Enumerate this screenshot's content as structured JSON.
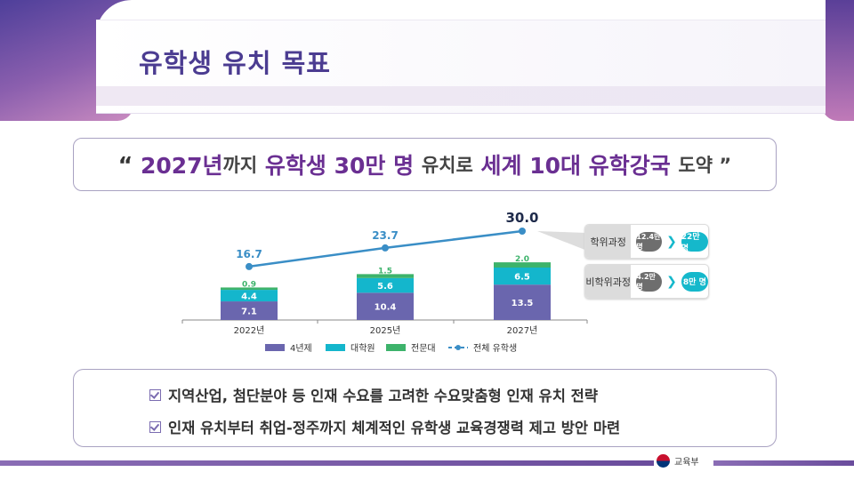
{
  "header": {
    "title": "유학생 유치 목표"
  },
  "quote": {
    "open": "“ ",
    "p1": "2027년",
    "p2": "까지 ",
    "p3": "유학생 30만 명",
    "p4": " 유치로 ",
    "p5": "세계 10대 유학강국",
    "p6": " 도약 ”"
  },
  "chart_data": {
    "type": "bar",
    "stacked": true,
    "categories": [
      "2022년",
      "2025년",
      "2027년"
    ],
    "series": [
      {
        "name": "4년제",
        "values": [
          7.1,
          10.4,
          13.5
        ],
        "color": "#6a66ae"
      },
      {
        "name": "대학원",
        "values": [
          4.4,
          5.6,
          6.5
        ],
        "color": "#14b6cc"
      },
      {
        "name": "전문대",
        "values": [
          0.9,
          1.5,
          2.0
        ],
        "color": "#3db36b"
      }
    ],
    "line_series": {
      "name": "전체 유학생",
      "values": [
        16.7,
        23.7,
        30.0
      ],
      "labels": [
        "16.7",
        "23.7",
        "30.0"
      ],
      "color": "#3a8ec6"
    },
    "legend_position": "bottom",
    "grid": false
  },
  "panels": [
    {
      "label": "학위과정",
      "from": "12.4만 명",
      "to": "22만 명"
    },
    {
      "label": "비학위과정",
      "from": "4.2만 명",
      "to": "8만 명"
    }
  ],
  "bullets": [
    "지역산업, 첨단분야 등 인재 수요를 고려한 수요맞춤형 인재 유치 전략",
    "인재 유치부터 취업-정주까지 체계적인 유학생 교육경쟁력 제고 방안 마련"
  ],
  "footer": {
    "ministry": "교육부"
  }
}
